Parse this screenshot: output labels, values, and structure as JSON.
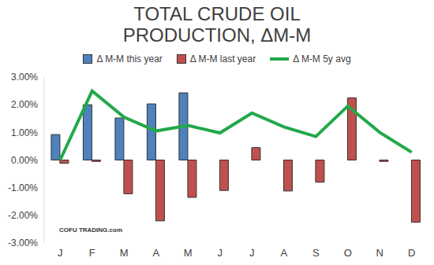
{
  "chart_data": {
    "type": "bar",
    "title": "TOTAL CRUDE OIL PRODUCTION, ΔM-M",
    "categories": [
      "J",
      "F",
      "M",
      "A",
      "M",
      "J",
      "J",
      "A",
      "S",
      "O",
      "N",
      "D"
    ],
    "series": [
      {
        "name": "Δ M-M this year",
        "type": "bar",
        "color": "#4f81bd",
        "values": [
          0.92,
          2.0,
          1.52,
          2.03,
          2.43,
          null,
          null,
          null,
          null,
          null,
          null,
          null
        ]
      },
      {
        "name": "Δ M-M last year",
        "type": "bar",
        "color": "#c0504d",
        "values": [
          -0.12,
          -0.05,
          -1.22,
          -2.2,
          -1.35,
          -1.1,
          0.45,
          -1.12,
          -0.8,
          2.25,
          -0.05,
          -2.25
        ]
      },
      {
        "name": "Δ M-M 5y avg",
        "type": "line",
        "color": "#22a84a",
        "values": [
          0.0,
          2.5,
          1.55,
          1.05,
          1.25,
          0.98,
          1.7,
          1.2,
          0.85,
          1.95,
          1.0,
          0.28
        ]
      }
    ],
    "ylim": [
      -3,
      3
    ],
    "yticks": [
      {
        "value": -3,
        "label": "-3.00%"
      },
      {
        "value": -2,
        "label": "-2.00%"
      },
      {
        "value": -1,
        "label": "-1.00%"
      },
      {
        "value": 0,
        "label": "0.00%"
      },
      {
        "value": 1,
        "label": "1.00%"
      },
      {
        "value": 2,
        "label": "2.00%"
      },
      {
        "value": 3,
        "label": "3.00%"
      }
    ],
    "grid": false,
    "legend": "top",
    "annotations": [
      "COFU TRADING.com"
    ]
  }
}
